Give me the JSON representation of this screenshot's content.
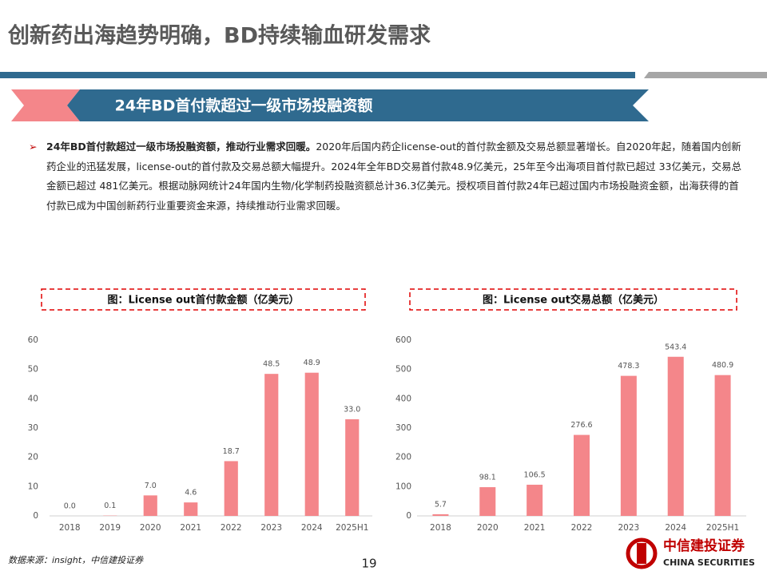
{
  "header": {
    "title": "创新药出海趋势明确，BD持续输血研发需求"
  },
  "section": {
    "title": "24年BD首付款超过一级市场投融资额"
  },
  "body": {
    "lead": "24年BD首付款超过一级市场投融资额，推动行业需求回暖。",
    "text": "2020年后国内药企license-out的首付款金额及交易总额显著增长。自2020年起，随着国内创新药企业的迅猛发展，license-out的首付款及交易总额大幅提升。2024年全年BD交易首付款48.9亿美元，25年至今出海项目首付款已超过 33亿美元，交易总金额已超过 481亿美元。根据动脉网统计24年国内生物/化学制药投融资额总计36.3亿美元。授权项目首付款24年已超过国内市场投融资金额，出海获得的首付款已成为中国创新药行业重要资金来源，持续推动行业需求回暖。"
  },
  "chart_data": [
    {
      "type": "bar",
      "title": "图：License out首付款金额（亿美元）",
      "categories": [
        "2018",
        "2019",
        "2020",
        "2021",
        "2022",
        "2023",
        "2024",
        "2025H1"
      ],
      "values": [
        0,
        0.1,
        7,
        4.6,
        18.7,
        48.5,
        48.9,
        33
      ],
      "value_labels": [
        "0.0",
        "0.1",
        "7.0",
        "4.6",
        "18.7",
        "48.5",
        "48.9",
        "33.0"
      ],
      "color": "#f4868a",
      "ylim": [
        0,
        60
      ],
      "yticks": [
        0,
        10,
        20,
        30,
        40,
        50,
        60
      ],
      "grid": false
    },
    {
      "type": "bar",
      "title": "图：License out交易总额（亿美元）",
      "categories": [
        "2018",
        "2020",
        "2021",
        "2022",
        "2023",
        "2024",
        "2025H1"
      ],
      "values": [
        5.7,
        98.1,
        106.5,
        276.6,
        478.3,
        543.4,
        480.9
      ],
      "color": "#f4868a",
      "ylim": [
        0,
        600
      ],
      "yticks": [
        0,
        100,
        200,
        300,
        400,
        500,
        600
      ],
      "grid": false
    }
  ],
  "footer": {
    "source": "数据来源：insight，中信建投证券",
    "page": "19",
    "logo_cn": "中信建投证券",
    "logo_en": "CHINA SECURITIES"
  }
}
